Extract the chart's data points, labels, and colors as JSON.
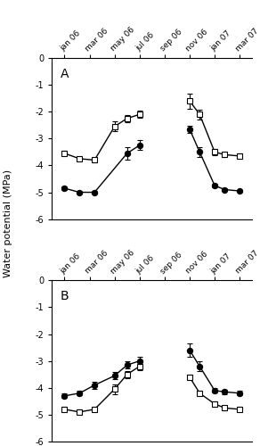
{
  "tick_positions": [
    0,
    1,
    2,
    3,
    4,
    5,
    6,
    7
  ],
  "tick_labels": [
    "jan 06",
    "mar 06",
    "may 06",
    "jul 06",
    "sep 06",
    "nov 06",
    "jan 07",
    "mar 07"
  ],
  "ylim": [
    -6,
    0
  ],
  "yticks": [
    0,
    -1,
    -2,
    -3,
    -4,
    -5,
    -6
  ],
  "ylabel": "Water potential (MPa)",
  "panelA_nd_x1": [
    0,
    0.6,
    1.2,
    2.0,
    2.5,
    3.0
  ],
  "panelA_nd_y1": [
    -3.55,
    -3.75,
    -3.8,
    -2.55,
    -2.25,
    -2.1
  ],
  "panelA_nd_e1": [
    0.08,
    0.08,
    0.08,
    0.18,
    0.14,
    0.14
  ],
  "panelA_nd_x2": [
    5.0,
    5.4,
    6.0,
    6.4,
    7.0
  ],
  "panelA_nd_y2": [
    -1.6,
    -2.1,
    -3.5,
    -3.6,
    -3.65
  ],
  "panelA_nd_e2": [
    0.28,
    0.18,
    0.12,
    0.08,
    0.08
  ],
  "panelA_d_x1": [
    0,
    0.6,
    1.2,
    2.5,
    3.0
  ],
  "panelA_d_y1": [
    -4.85,
    -5.0,
    -5.0,
    -3.55,
    -3.25
  ],
  "panelA_d_e1": [
    0.08,
    0.04,
    0.04,
    0.22,
    0.18
  ],
  "panelA_d_x2": [
    5.0,
    5.4,
    6.0,
    6.4,
    7.0
  ],
  "panelA_d_y2": [
    -2.65,
    -3.5,
    -4.75,
    -4.9,
    -4.95
  ],
  "panelA_d_e2": [
    0.14,
    0.18,
    0.08,
    0.04,
    0.04
  ],
  "panelB_nd_x1": [
    0,
    0.6,
    1.2,
    2.0,
    2.5,
    3.0
  ],
  "panelB_nd_y1": [
    -4.8,
    -4.9,
    -4.8,
    -4.05,
    -3.5,
    -3.2
  ],
  "panelB_nd_e1": [
    0.08,
    0.08,
    0.08,
    0.18,
    0.14,
    0.14
  ],
  "panelB_nd_x2": [
    5.0,
    5.4,
    6.0,
    6.4,
    7.0
  ],
  "panelB_nd_y2": [
    -3.6,
    -4.2,
    -4.6,
    -4.75,
    -4.8
  ],
  "panelB_nd_e2": [
    0.08,
    0.08,
    0.08,
    0.08,
    0.08
  ],
  "panelB_d_x1": [
    0,
    0.6,
    1.2,
    2.0,
    2.5,
    3.0
  ],
  "panelB_d_y1": [
    -4.3,
    -4.2,
    -3.9,
    -3.55,
    -3.15,
    -3.0
  ],
  "panelB_d_e1": [
    0.08,
    0.08,
    0.14,
    0.14,
    0.14,
    0.14
  ],
  "panelB_d_x2": [
    5.0,
    5.4,
    6.0,
    6.4,
    7.0
  ],
  "panelB_d_y2": [
    -2.6,
    -3.2,
    -4.1,
    -4.15,
    -4.2
  ],
  "panelB_d_e2": [
    0.24,
    0.18,
    0.08,
    0.08,
    0.08
  ]
}
